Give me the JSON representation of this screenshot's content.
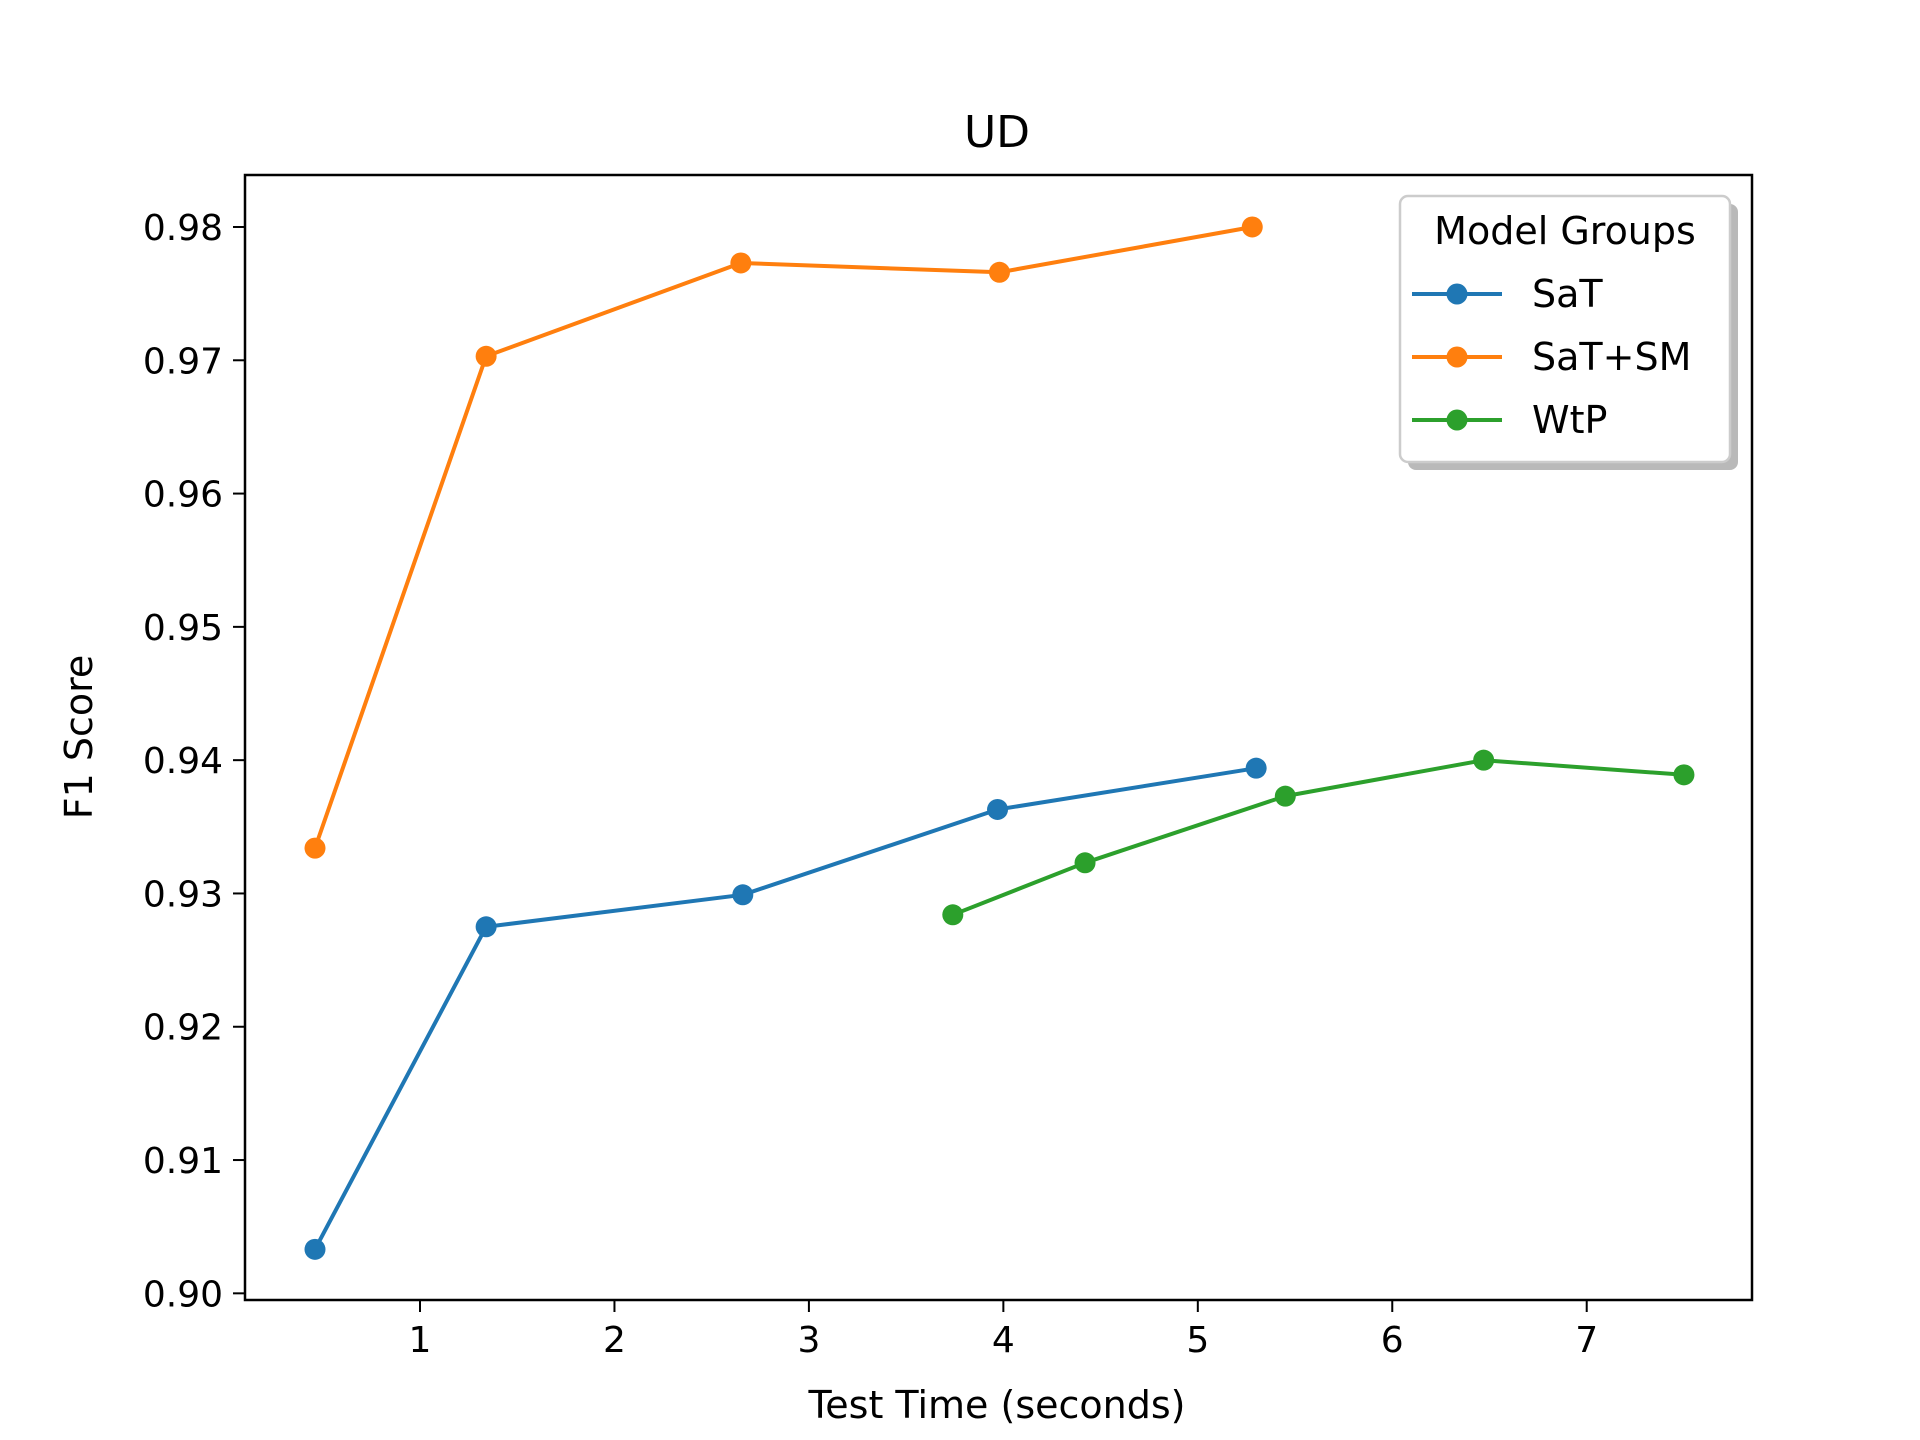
{
  "chart_data": {
    "type": "line",
    "title": "UD",
    "xlabel": "Test Time (seconds)",
    "ylabel": "F1 Score",
    "xlim": [
      0.1,
      7.85
    ],
    "ylim": [
      0.8995,
      0.9839
    ],
    "xticks": [
      1,
      2,
      3,
      4,
      5,
      6,
      7
    ],
    "yticks": [
      0.9,
      0.91,
      0.92,
      0.93,
      0.94,
      0.95,
      0.96,
      0.97,
      0.98
    ],
    "ytick_labels": [
      "0.90",
      "0.91",
      "0.92",
      "0.93",
      "0.94",
      "0.95",
      "0.96",
      "0.97",
      "0.98"
    ],
    "grid": false,
    "legend": {
      "title": "Model Groups",
      "placement": "top-right"
    },
    "series": [
      {
        "name": "SaT",
        "color": "#1f77b4",
        "points": [
          {
            "x": 0.46,
            "y": 0.9033
          },
          {
            "x": 1.34,
            "y": 0.9275
          },
          {
            "x": 2.66,
            "y": 0.9299
          },
          {
            "x": 3.97,
            "y": 0.9363
          },
          {
            "x": 5.3,
            "y": 0.9394
          }
        ]
      },
      {
        "name": "SaT+SM",
        "color": "#ff7f0e",
        "points": [
          {
            "x": 0.46,
            "y": 0.9334
          },
          {
            "x": 1.34,
            "y": 0.9703
          },
          {
            "x": 2.65,
            "y": 0.9773
          },
          {
            "x": 3.98,
            "y": 0.9766
          },
          {
            "x": 5.28,
            "y": 0.98
          }
        ]
      },
      {
        "name": "WtP",
        "color": "#2ca02c",
        "points": [
          {
            "x": 3.74,
            "y": 0.9284
          },
          {
            "x": 4.42,
            "y": 0.9323
          },
          {
            "x": 5.45,
            "y": 0.9373
          },
          {
            "x": 6.47,
            "y": 0.94
          },
          {
            "x": 7.5,
            "y": 0.9389
          }
        ]
      }
    ]
  }
}
